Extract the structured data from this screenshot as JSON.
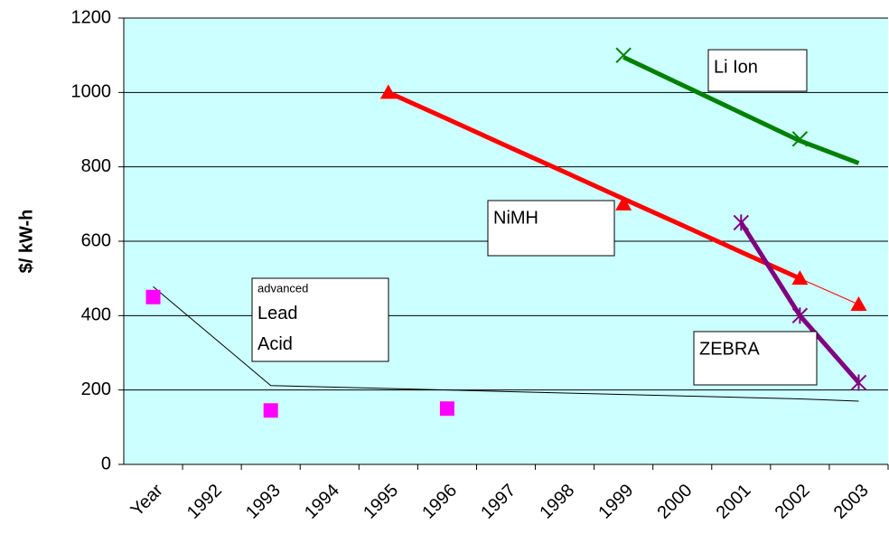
{
  "chart_data": {
    "type": "line",
    "y_label": "$/ kW-h",
    "categories": [
      "Year",
      "1992",
      "1993",
      "1994",
      "1995",
      "1996",
      "1997",
      "1998",
      "1999",
      "2000",
      "2001",
      "2002",
      "2003"
    ],
    "ylim": [
      0,
      1200
    ],
    "yticks": [
      0,
      200,
      400,
      600,
      800,
      1000,
      1200
    ],
    "grid": true,
    "background": "#ccffff",
    "series": [
      {
        "name": "Li Ion",
        "color": "#008000",
        "marker": "x",
        "values": [
          null,
          null,
          null,
          null,
          null,
          null,
          null,
          null,
          1100,
          null,
          null,
          875,
          null
        ],
        "trend": [
          null,
          null,
          null,
          null,
          null,
          null,
          null,
          null,
          1095,
          1020,
          945,
          870,
          810
        ],
        "trend_width": 5
      },
      {
        "name": "NiMH",
        "color": "#ff0000",
        "marker": "triangle",
        "line_width": 1,
        "values": [
          null,
          null,
          null,
          null,
          1000,
          null,
          null,
          null,
          700,
          null,
          null,
          500,
          430
        ],
        "trend": [
          null,
          null,
          null,
          null,
          1000,
          929,
          857,
          786,
          714,
          643,
          571,
          500,
          null
        ],
        "trend_width": 5
      },
      {
        "name": "ZEBRA",
        "color": "#800080",
        "marker": "star",
        "line_width": 5,
        "values": [
          null,
          null,
          null,
          null,
          null,
          null,
          null,
          null,
          null,
          null,
          650,
          400,
          220
        ]
      },
      {
        "name": "Lead Acid",
        "prefix": "advanced",
        "color": "#ff00ff",
        "marker": "square",
        "values": [
          450,
          null,
          145,
          null,
          null,
          150,
          null,
          null,
          null,
          null,
          null,
          null,
          null
        ],
        "trend": [
          478,
          345,
          212,
          208,
          204,
          200,
          196,
          192,
          188,
          184,
          180,
          176,
          170
        ],
        "trend_width": 1,
        "trend_color": "#000000"
      }
    ]
  }
}
